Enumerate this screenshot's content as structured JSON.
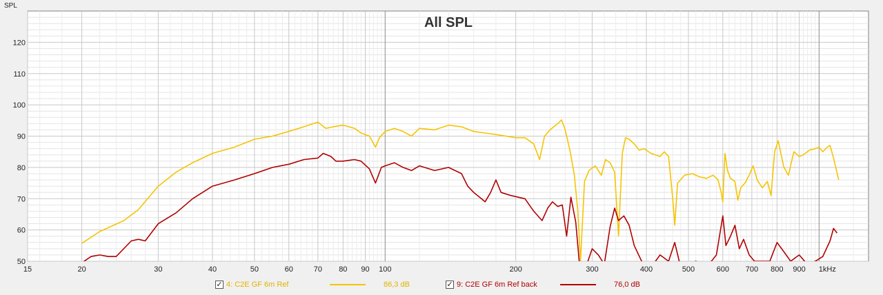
{
  "chart_data": {
    "type": "line",
    "title": "All SPL",
    "ylabel": "SPL",
    "xlabel": "",
    "x_scale": "log",
    "xlim": [
      15,
      1300
    ],
    "ylim": [
      50,
      130
    ],
    "grid": true,
    "x_ticks": [
      {
        "v": 15,
        "label": "15"
      },
      {
        "v": 20,
        "label": "20"
      },
      {
        "v": 30,
        "label": "30"
      },
      {
        "v": 40,
        "label": "40"
      },
      {
        "v": 50,
        "label": "50"
      },
      {
        "v": 60,
        "label": "60"
      },
      {
        "v": 70,
        "label": "70"
      },
      {
        "v": 80,
        "label": "80"
      },
      {
        "v": 90,
        "label": "90"
      },
      {
        "v": 100,
        "label": "100"
      },
      {
        "v": 200,
        "label": "200"
      },
      {
        "v": 300,
        "label": "300"
      },
      {
        "v": 400,
        "label": "400"
      },
      {
        "v": 500,
        "label": "500"
      },
      {
        "v": 600,
        "label": "600"
      },
      {
        "v": 700,
        "label": "700"
      },
      {
        "v": 800,
        "label": "800"
      },
      {
        "v": 900,
        "label": "900"
      },
      {
        "v": 1000,
        "label": "1kHz"
      }
    ],
    "y_ticks": [
      {
        "v": 50,
        "label": "50"
      },
      {
        "v": 60,
        "label": "60"
      },
      {
        "v": 70,
        "label": "70"
      },
      {
        "v": 80,
        "label": "80"
      },
      {
        "v": 90,
        "label": "90"
      },
      {
        "v": 100,
        "label": "100"
      },
      {
        "v": 110,
        "label": "110"
      },
      {
        "v": 120,
        "label": "120"
      }
    ],
    "series": [
      {
        "name": "4: C2E GF 6m Ref",
        "value_text": "86,3 dB",
        "color": "#f5c400",
        "points": [
          [
            20,
            55.7
          ],
          [
            22,
            59.5
          ],
          [
            25,
            63
          ],
          [
            27,
            66.5
          ],
          [
            30,
            74
          ],
          [
            33,
            78.5
          ],
          [
            36,
            81.5
          ],
          [
            40,
            84.5
          ],
          [
            45,
            86.5
          ],
          [
            50,
            89
          ],
          [
            55,
            90
          ],
          [
            60,
            91.5
          ],
          [
            65,
            93
          ],
          [
            70,
            94.5
          ],
          [
            73,
            92.5
          ],
          [
            76,
            93
          ],
          [
            80,
            93.5
          ],
          [
            85,
            92.5
          ],
          [
            88,
            91
          ],
          [
            92,
            90
          ],
          [
            95,
            86.5
          ],
          [
            97,
            89.5
          ],
          [
            100,
            91.5
          ],
          [
            105,
            92.5
          ],
          [
            110,
            91.5
          ],
          [
            115,
            90
          ],
          [
            120,
            92.5
          ],
          [
            130,
            92
          ],
          [
            140,
            93.5
          ],
          [
            150,
            93
          ],
          [
            160,
            91.5
          ],
          [
            170,
            91
          ],
          [
            180,
            90.5
          ],
          [
            190,
            90
          ],
          [
            200,
            89.5
          ],
          [
            210,
            89.5
          ],
          [
            220,
            87.5
          ],
          [
            227,
            82.5
          ],
          [
            233,
            90
          ],
          [
            240,
            92
          ],
          [
            250,
            94
          ],
          [
            255,
            95.2
          ],
          [
            260,
            92
          ],
          [
            267,
            85
          ],
          [
            273,
            77.5
          ],
          [
            278,
            66
          ],
          [
            282,
            50
          ],
          [
            288,
            75.5
          ],
          [
            295,
            79
          ],
          [
            305,
            80.5
          ],
          [
            315,
            77.5
          ],
          [
            322,
            82.5
          ],
          [
            330,
            81.5
          ],
          [
            338,
            78.5
          ],
          [
            345,
            58
          ],
          [
            352,
            84.5
          ],
          [
            358,
            89.5
          ],
          [
            365,
            89
          ],
          [
            375,
            87.5
          ],
          [
            385,
            85.5
          ],
          [
            395,
            86
          ],
          [
            410,
            84.5
          ],
          [
            420,
            84
          ],
          [
            430,
            83.5
          ],
          [
            440,
            85
          ],
          [
            450,
            83.5
          ],
          [
            460,
            70
          ],
          [
            465,
            61.5
          ],
          [
            472,
            75
          ],
          [
            490,
            77.5
          ],
          [
            510,
            78
          ],
          [
            530,
            77
          ],
          [
            550,
            76.5
          ],
          [
            570,
            77.5
          ],
          [
            585,
            76
          ],
          [
            595,
            72
          ],
          [
            600,
            69
          ],
          [
            607,
            84.5
          ],
          [
            615,
            79
          ],
          [
            625,
            76.5
          ],
          [
            640,
            75.5
          ],
          [
            650,
            69.5
          ],
          [
            660,
            73.5
          ],
          [
            675,
            75
          ],
          [
            690,
            77.5
          ],
          [
            705,
            80.5
          ],
          [
            720,
            76
          ],
          [
            740,
            73.5
          ],
          [
            760,
            75.5
          ],
          [
            775,
            71
          ],
          [
            790,
            85
          ],
          [
            805,
            88.5
          ],
          [
            815,
            85
          ],
          [
            830,
            80
          ],
          [
            850,
            77.5
          ],
          [
            875,
            85
          ],
          [
            900,
            83.5
          ],
          [
            920,
            84
          ],
          [
            950,
            85.5
          ],
          [
            980,
            86
          ],
          [
            1000,
            86.5
          ],
          [
            1020,
            85
          ],
          [
            1045,
            86.5
          ],
          [
            1060,
            87
          ],
          [
            1080,
            83
          ],
          [
            1110,
            76
          ]
        ]
      },
      {
        "name": "9: C2E GF 6m Ref back",
        "value_text": "76,0 dB",
        "color": "#b00000",
        "points": [
          [
            20,
            49.5
          ],
          [
            21,
            51.5
          ],
          [
            22,
            52
          ],
          [
            23,
            51.5
          ],
          [
            24,
            51.5
          ],
          [
            26,
            56.5
          ],
          [
            27,
            57
          ],
          [
            28,
            56.5
          ],
          [
            30,
            62
          ],
          [
            33,
            65.5
          ],
          [
            36,
            70
          ],
          [
            40,
            74
          ],
          [
            45,
            76
          ],
          [
            50,
            78
          ],
          [
            55,
            80
          ],
          [
            60,
            81
          ],
          [
            65,
            82.5
          ],
          [
            70,
            83
          ],
          [
            72,
            84.5
          ],
          [
            75,
            83.5
          ],
          [
            77,
            82
          ],
          [
            80,
            82
          ],
          [
            85,
            82.5
          ],
          [
            88,
            82
          ],
          [
            92,
            79.5
          ],
          [
            95,
            75
          ],
          [
            98,
            80
          ],
          [
            100,
            80.5
          ],
          [
            105,
            81.5
          ],
          [
            110,
            80
          ],
          [
            115,
            79
          ],
          [
            120,
            80.5
          ],
          [
            130,
            79
          ],
          [
            140,
            80
          ],
          [
            150,
            78
          ],
          [
            155,
            74
          ],
          [
            160,
            72
          ],
          [
            165,
            70.5
          ],
          [
            170,
            69
          ],
          [
            175,
            72
          ],
          [
            180,
            76
          ],
          [
            185,
            72
          ],
          [
            195,
            71
          ],
          [
            210,
            70
          ],
          [
            220,
            66
          ],
          [
            230,
            63
          ],
          [
            237,
            67
          ],
          [
            243,
            69
          ],
          [
            250,
            67.5
          ],
          [
            256,
            68
          ],
          [
            262,
            58
          ],
          [
            268,
            70.5
          ],
          [
            275,
            62.5
          ],
          [
            280,
            50
          ],
          [
            290,
            48
          ],
          [
            300,
            54
          ],
          [
            310,
            52
          ],
          [
            320,
            49
          ],
          [
            330,
            61
          ],
          [
            338,
            67
          ],
          [
            345,
            63
          ],
          [
            355,
            64.5
          ],
          [
            365,
            61.5
          ],
          [
            375,
            55
          ],
          [
            390,
            50
          ],
          [
            410,
            48
          ],
          [
            430,
            52
          ],
          [
            450,
            50
          ],
          [
            465,
            56
          ],
          [
            480,
            48
          ],
          [
            500,
            49
          ],
          [
            520,
            50
          ],
          [
            550,
            48
          ],
          [
            580,
            52
          ],
          [
            600,
            64.5
          ],
          [
            610,
            55
          ],
          [
            625,
            58
          ],
          [
            640,
            61.5
          ],
          [
            655,
            54
          ],
          [
            670,
            57
          ],
          [
            690,
            52
          ],
          [
            710,
            50
          ],
          [
            740,
            50
          ],
          [
            770,
            50
          ],
          [
            800,
            56
          ],
          [
            830,
            53
          ],
          [
            860,
            50
          ],
          [
            900,
            52
          ],
          [
            940,
            49
          ],
          [
            980,
            50
          ],
          [
            1020,
            51.5
          ],
          [
            1060,
            56.5
          ],
          [
            1080,
            60.5
          ],
          [
            1100,
            59
          ]
        ]
      }
    ]
  },
  "legend": [
    {
      "checked_glyph": "✓",
      "label": "4: C2E GF 6m Ref",
      "value": "86,3 dB"
    },
    {
      "checked_glyph": "✓",
      "label": "9: C2E GF 6m Ref back",
      "value": "76,0 dB"
    }
  ]
}
